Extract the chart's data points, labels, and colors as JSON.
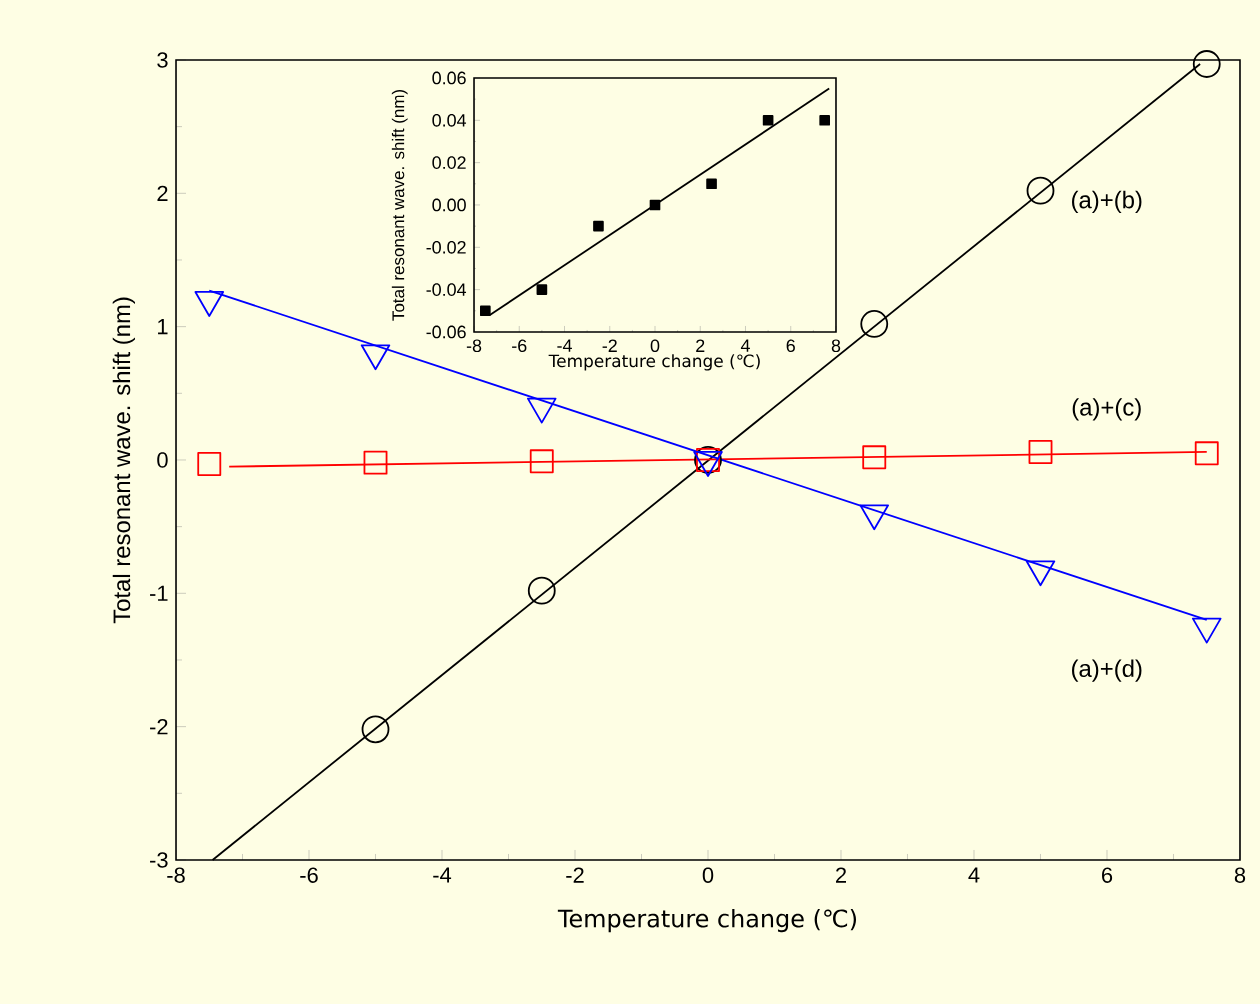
{
  "chart_data": [
    {
      "type": "scatter",
      "xlabel": "Temperature change (℃)",
      "ylabel": "Total resonant wave. shift (nm)",
      "xlim": [
        -8,
        8
      ],
      "ylim": [
        -3,
        3
      ],
      "xticks": [
        -8,
        -6,
        -4,
        -2,
        0,
        2,
        4,
        6,
        8
      ],
      "yticks": [
        -3,
        -2,
        -1,
        0,
        1,
        2,
        3
      ],
      "grid": false,
      "legend": false,
      "series": [
        {
          "name": "(a)+(b)",
          "marker": "circle",
          "color": "#000000",
          "x": [
            -5,
            -2.5,
            0,
            2.5,
            5,
            7.5
          ],
          "values": [
            -2.02,
            -0.98,
            0,
            1.02,
            2.02,
            2.97
          ]
        },
        {
          "type": "line",
          "marker": "none",
          "color": "#000000",
          "x": [
            -7.45,
            7.4
          ],
          "values": [
            -3,
            2.97
          ]
        },
        {
          "name": "(a)+(c)",
          "marker": "square",
          "color": "#ff0000",
          "x": [
            -7.5,
            -5,
            -2.5,
            0,
            2.5,
            5,
            7.5
          ],
          "values": [
            -0.03,
            -0.02,
            -0.01,
            0,
            0.02,
            0.06,
            0.05
          ]
        },
        {
          "type": "line",
          "marker": "none",
          "color": "#ff0000",
          "x": [
            -7.2,
            7.5
          ],
          "values": [
            -0.05,
            0.06
          ]
        },
        {
          "name": "(a)+(d)",
          "marker": "triangle",
          "color": "#0000ff",
          "x": [
            -7.5,
            -5,
            -2.5,
            0,
            2.5,
            5,
            7.5
          ],
          "values": [
            1.2,
            0.8,
            0.4,
            0,
            -0.4,
            -0.82,
            -1.25
          ]
        },
        {
          "type": "line",
          "marker": "none",
          "color": "#0000ff",
          "x": [
            -7.5,
            7.5
          ],
          "values": [
            1.27,
            -1.2
          ]
        }
      ]
    },
    {
      "type": "scatter",
      "xlabel": "Temperature change (℃)",
      "ylabel": "Total resonant wave. shift (nm)",
      "xlim": [
        -8,
        8
      ],
      "ylim": [
        -0.06,
        0.06
      ],
      "xticks": [
        -8,
        -6,
        -4,
        -2,
        0,
        2,
        4,
        6,
        8
      ],
      "yticks": [
        -0.06,
        -0.04,
        -0.02,
        {
          "value": 0,
          "label": "0.00"
        },
        0.02,
        0.04,
        0.06
      ],
      "grid": false,
      "legend": false,
      "series": [
        {
          "marker": "square",
          "color": "#000000",
          "x": [
            -7.5,
            -5,
            -2.5,
            0,
            2.5,
            5,
            7.5
          ],
          "values": [
            -0.05,
            -0.04,
            -0.01,
            0,
            0.01,
            0.04,
            0.04
          ]
        },
        {
          "type": "line",
          "marker": "none",
          "color": "#000000",
          "x": [
            -7.3,
            7.7
          ],
          "values": [
            -0.052,
            0.055
          ]
        }
      ]
    }
  ]
}
